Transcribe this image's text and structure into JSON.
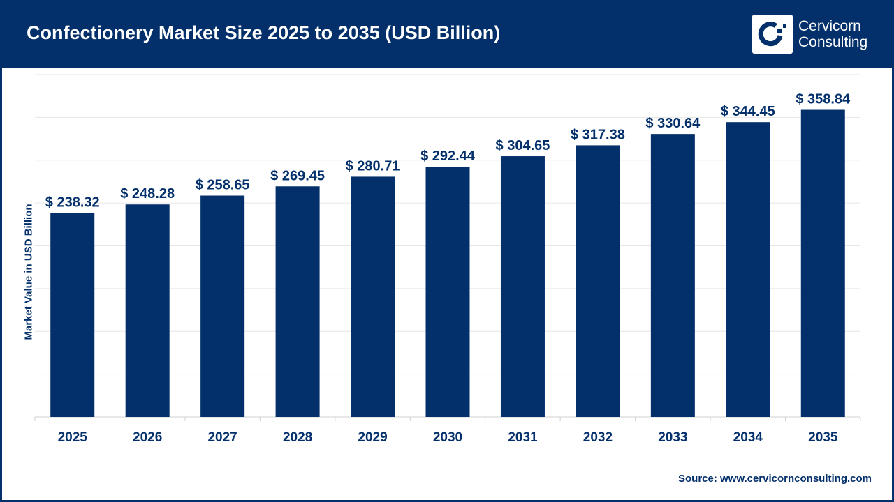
{
  "header": {
    "title": "Confectionery Market Size 2025 to 2035 (USD Billion)",
    "logo_line1": "Cervicorn",
    "logo_line2": "Consulting"
  },
  "source": "Source: www.cervicornconsulting.com",
  "colors": {
    "bar": "#03306b",
    "header": "#03306b",
    "grid": "#e6e6e6"
  },
  "chart_data": {
    "type": "bar",
    "title": "Confectionery Market Size 2025 to 2035 (USD Billion)",
    "xlabel": "",
    "ylabel": "Market Value in USD Billion",
    "categories": [
      "2025",
      "2026",
      "2027",
      "2028",
      "2029",
      "2030",
      "2031",
      "2032",
      "2033",
      "2034",
      "2035"
    ],
    "values": [
      238.32,
      248.28,
      258.65,
      269.45,
      280.71,
      292.44,
      304.65,
      317.38,
      330.64,
      344.45,
      358.84
    ],
    "data_labels": [
      "$ 238.32",
      "$ 248.28",
      "$ 258.65",
      "$ 269.45",
      "$ 280.71",
      "$ 292.44",
      "$ 304.65",
      "$ 317.38",
      "$ 330.64",
      "$ 344.45",
      "$ 358.84"
    ],
    "ylim": [
      0,
      400
    ],
    "grid_step": 50,
    "grid": true,
    "y_tick_labels_shown": false
  }
}
